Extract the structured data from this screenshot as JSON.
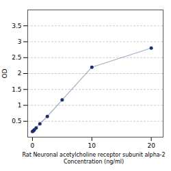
{
  "chart_data": {
    "type": "line",
    "x": [
      0,
      0.156,
      0.313,
      0.625,
      1.25,
      2.5,
      5,
      10,
      20
    ],
    "values": [
      0.175,
      0.2,
      0.23,
      0.29,
      0.42,
      0.65,
      1.17,
      2.2,
      2.8
    ],
    "color": "#1a2f6e",
    "marker": "o",
    "ylabel": "OD",
    "xlabel": "Rat Neuronal acetylcholine receptor subunit alpha-2\nConcentration (ng/ml)",
    "ylim": [
      0.0,
      4.0
    ],
    "yticks": [
      0.5,
      1,
      1.5,
      2,
      2.5,
      3,
      3.5
    ],
    "xlim": [
      -0.8,
      22
    ],
    "xticks": [
      0,
      10,
      20
    ],
    "grid": true
  }
}
